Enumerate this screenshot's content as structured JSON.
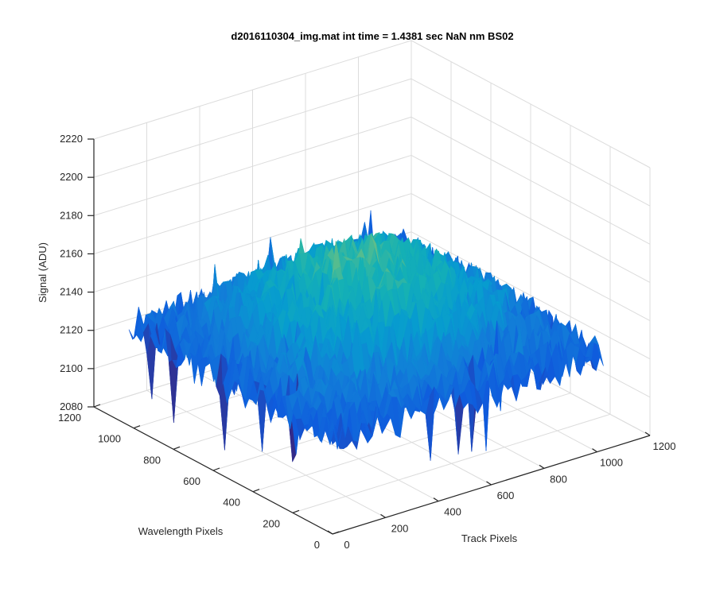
{
  "chart_data": {
    "type": "surface",
    "title": "d2016110304_img.mat int time = 1.4381 sec  NaN nm BS02",
    "xlabel": "Track Pixels",
    "ylabel": "Wavelength Pixels",
    "zlabel": "Signal (ADU)",
    "xlim": [
      0,
      1200
    ],
    "ylim": [
      0,
      1200
    ],
    "zlim": [
      2080,
      2220
    ],
    "x_ticks": [
      "0",
      "200",
      "400",
      "600",
      "800",
      "1000",
      "1200"
    ],
    "y_ticks": [
      "0",
      "200",
      "400",
      "600",
      "800",
      "1000",
      "1200"
    ],
    "z_ticks": [
      "2080",
      "2100",
      "2120",
      "2140",
      "2160",
      "2180",
      "2200",
      "2220"
    ],
    "grid": true,
    "colormap": "parula",
    "surface_summary": {
      "x_extent": [
        0,
        1024
      ],
      "y_extent": [
        0,
        1024
      ],
      "edge_signal": 2130,
      "center_signal": 2170,
      "peak_signal": 2202,
      "min_signal": 2085
    }
  }
}
